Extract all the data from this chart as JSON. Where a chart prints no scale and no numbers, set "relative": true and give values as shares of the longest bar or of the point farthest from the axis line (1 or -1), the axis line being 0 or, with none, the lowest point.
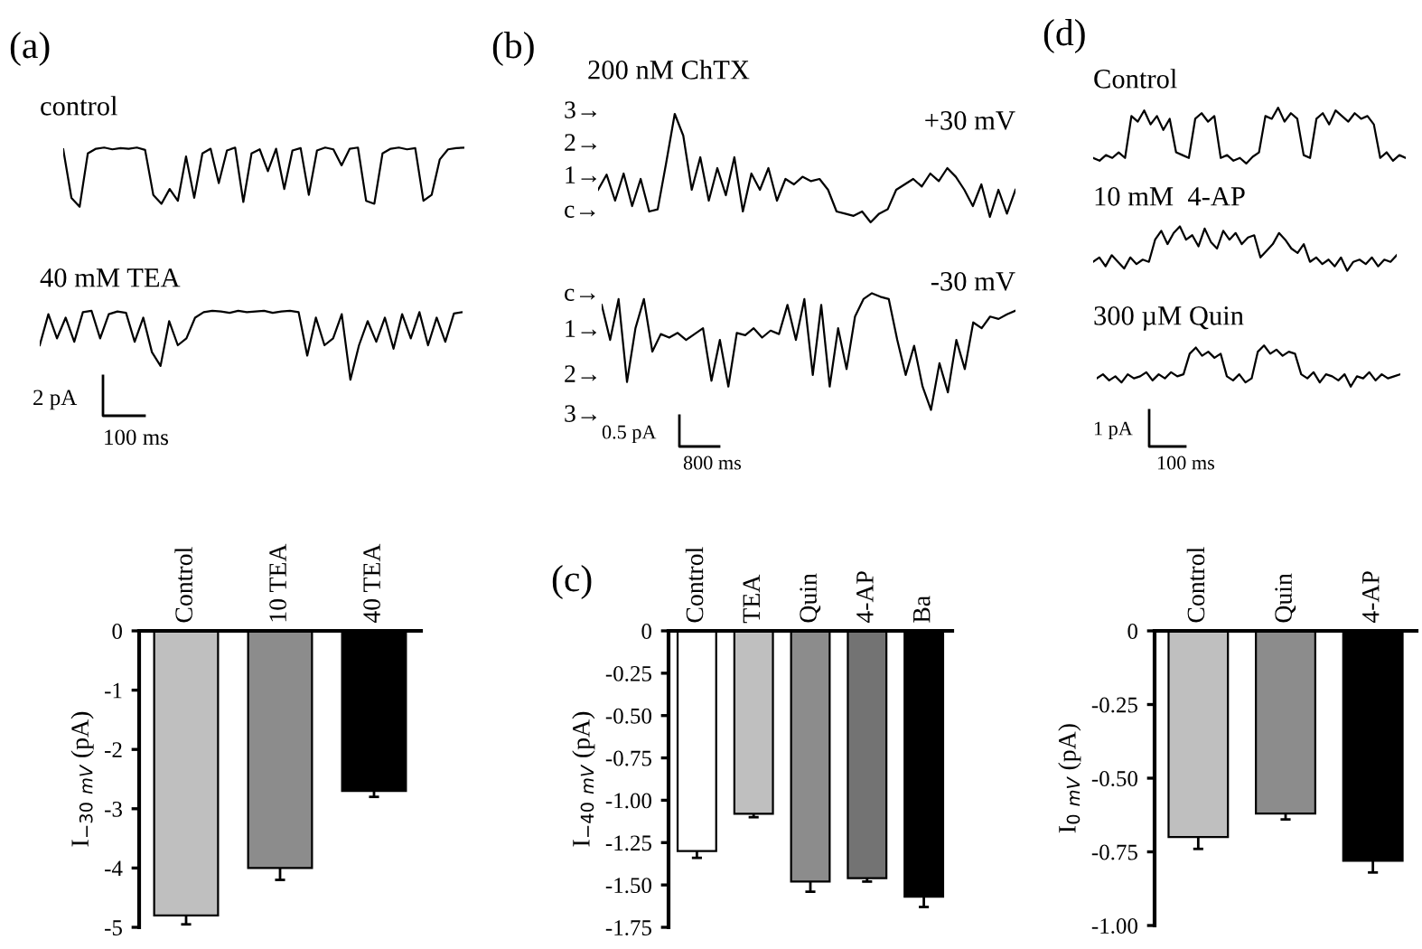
{
  "chart_data": [
    {
      "type": "line",
      "relative": true,
      "title": "control",
      "annotations": [
        "(a)"
      ],
      "categories": [
        null,
        null,
        null,
        null,
        null,
        null,
        null,
        null,
        null,
        null,
        null,
        null,
        null,
        null,
        null,
        null,
        null,
        null,
        null,
        null,
        null,
        null,
        null,
        null,
        null,
        null,
        null,
        null,
        null,
        null,
        null,
        null,
        null,
        null,
        null,
        null,
        null,
        null,
        null,
        null,
        null,
        null,
        null,
        null,
        null,
        null,
        null,
        null,
        null,
        null
      ],
      "series": [
        {
          "color": "#000000",
          "values": [
            0.97,
            0.15,
            0.0,
            0.9,
            0.98,
            1,
            0.97,
            0.99,
            0.98,
            1,
            0.96,
            0.2,
            0.05,
            0.3,
            0.1,
            0.85,
            0.15,
            0.9,
            0.98,
            0.4,
            0.95,
            1,
            0.08,
            0.9,
            0.97,
            0.6,
            0.98,
            0.3,
            0.95,
            0.99,
            0.2,
            0.95,
            1,
            0.97,
            0.7,
            0.98,
            1,
            0.1,
            0.05,
            0.9,
            0.98,
            1,
            0.97,
            0.99,
            0.1,
            0.2,
            0.8,
            0.97,
            0.99,
            1
          ]
        }
      ]
    },
    {
      "type": "line",
      "relative": true,
      "title": "40 mM TEA",
      "annotations": [
        "2 pA",
        "100 ms"
      ],
      "categories": [
        null,
        null,
        null,
        null,
        null,
        null,
        null,
        null,
        null,
        null,
        null,
        null,
        null,
        null,
        null,
        null,
        null,
        null,
        null,
        null,
        null,
        null,
        null,
        null,
        null,
        null,
        null,
        null,
        null,
        null,
        null,
        null,
        null,
        null,
        null,
        null,
        null,
        null,
        null,
        null,
        null,
        null,
        null,
        null,
        null,
        null,
        null,
        null,
        null,
        null
      ],
      "series": [
        {
          "color": "#000000",
          "values": [
            0.5,
            0.95,
            0.6,
            0.9,
            0.55,
            0.98,
            1,
            0.6,
            0.95,
            0.99,
            0.97,
            0.55,
            0.9,
            0.4,
            0.2,
            0.85,
            0.5,
            0.6,
            0.9,
            0.98,
            1,
            0.99,
            0.97,
            1,
            0.98,
            0.99,
            1,
            0.97,
            0.99,
            1,
            0.98,
            0.35,
            0.9,
            0.5,
            0.6,
            0.95,
            0.0,
            0.5,
            0.85,
            0.55,
            0.9,
            0.45,
            0.95,
            0.6,
            0.98,
            0.5,
            0.9,
            0.55,
            0.96,
            0.98
          ]
        }
      ]
    },
    {
      "type": "line",
      "relative": true,
      "title": "200 nM ChTX",
      "annotations": [
        "(b)",
        "+30 mV",
        "3→",
        "2→",
        "1→",
        "c→"
      ],
      "categories": [
        null,
        null,
        null,
        null,
        null,
        null,
        null,
        null,
        null,
        null,
        null,
        null,
        null,
        null,
        null,
        null,
        null,
        null,
        null,
        null,
        null,
        null,
        null,
        null,
        null,
        null,
        null,
        null,
        null,
        null,
        null,
        null,
        null,
        null,
        null,
        null,
        null,
        null,
        null,
        null,
        null,
        null,
        null,
        null,
        null,
        null,
        null,
        null,
        null,
        null
      ],
      "series": [
        {
          "color": "#000000",
          "values": [
            0.3,
            0.44,
            0.2,
            0.45,
            0.15,
            0.4,
            0.1,
            0.12,
            0.55,
            1,
            0.8,
            0.3,
            0.6,
            0.2,
            0.5,
            0.25,
            0.6,
            0.1,
            0.45,
            0.3,
            0.5,
            0.2,
            0.4,
            0.35,
            0.42,
            0.38,
            0.4,
            0.3,
            0.1,
            0.08,
            0.06,
            0.1,
            0.0,
            0.08,
            0.12,
            0.3,
            0.35,
            0.4,
            0.33,
            0.45,
            0.38,
            0.5,
            0.42,
            0.3,
            0.15,
            0.35,
            0.05,
            0.3,
            0.08,
            0.3
          ]
        }
      ]
    },
    {
      "type": "line",
      "relative": true,
      "annotations": [
        "-30 mV",
        "c→",
        "1→",
        "2→",
        "3→",
        "0.5 pA",
        "800 ms"
      ],
      "categories": [
        null,
        null,
        null,
        null,
        null,
        null,
        null,
        null,
        null,
        null,
        null,
        null,
        null,
        null,
        null,
        null,
        null,
        null,
        null,
        null,
        null,
        null,
        null,
        null,
        null,
        null,
        null,
        null,
        null,
        null,
        null,
        null,
        null,
        null,
        null,
        null,
        null,
        null,
        null,
        null,
        null,
        null,
        null,
        null,
        null,
        null,
        null,
        null,
        null,
        null
      ],
      "series": [
        {
          "color": "#000000",
          "values": [
            0.9,
            0.6,
            0.95,
            0.24,
            0.7,
            0.95,
            0.5,
            0.65,
            0.62,
            0.66,
            0.6,
            0.65,
            0.7,
            0.25,
            0.6,
            0.2,
            0.66,
            0.64,
            0.7,
            0.62,
            0.68,
            0.65,
            0.9,
            0.6,
            0.95,
            0.3,
            0.9,
            0.2,
            0.7,
            0.35,
            0.8,
            0.95,
            1,
            0.97,
            0.95,
            0.6,
            0.3,
            0.55,
            0.2,
            0.0,
            0.4,
            0.15,
            0.6,
            0.35,
            0.75,
            0.7,
            0.8,
            0.78,
            0.82,
            0.85
          ]
        }
      ]
    },
    {
      "type": "line",
      "relative": true,
      "title": "Control",
      "annotations": [
        "(d)"
      ],
      "categories": [
        null,
        null,
        null,
        null,
        null,
        null,
        null,
        null,
        null,
        null,
        null,
        null,
        null,
        null,
        null,
        null,
        null,
        null,
        null,
        null,
        null,
        null,
        null,
        null,
        null,
        null,
        null,
        null,
        null,
        null,
        null,
        null,
        null,
        null,
        null,
        null,
        null,
        null,
        null,
        null,
        null,
        null,
        null,
        null,
        null,
        null,
        null,
        null,
        null,
        null
      ],
      "series": [
        {
          "color": "#000000",
          "values": [
            0.1,
            0.05,
            0.15,
            0.1,
            0.2,
            0.1,
            0.85,
            0.75,
            0.95,
            0.7,
            0.85,
            0.6,
            0.8,
            0.2,
            0.15,
            0.1,
            0.8,
            0.9,
            0.75,
            0.85,
            0.1,
            0.15,
            0.05,
            0.1,
            0.0,
            0.12,
            0.2,
            0.85,
            0.8,
            1,
            0.75,
            0.9,
            0.8,
            0.15,
            0.1,
            0.8,
            0.9,
            0.7,
            0.95,
            0.85,
            0.75,
            0.9,
            0.8,
            0.85,
            0.7,
            0.1,
            0.2,
            0.05,
            0.15,
            0.1
          ]
        }
      ]
    },
    {
      "type": "line",
      "relative": true,
      "title": "10 mM  4-AP",
      "categories": [
        null,
        null,
        null,
        null,
        null,
        null,
        null,
        null,
        null,
        null,
        null,
        null,
        null,
        null,
        null,
        null,
        null,
        null,
        null,
        null,
        null,
        null,
        null,
        null,
        null,
        null,
        null,
        null,
        null,
        null,
        null,
        null,
        null,
        null,
        null,
        null,
        null,
        null,
        null,
        null,
        null,
        null,
        null,
        null,
        null,
        null,
        null,
        null,
        null,
        null
      ],
      "series": [
        {
          "color": "#000000",
          "values": [
            0.2,
            0.3,
            0.1,
            0.35,
            0.2,
            0.05,
            0.3,
            0.15,
            0.25,
            0.2,
            0.7,
            0.9,
            0.6,
            0.85,
            1,
            0.7,
            0.8,
            0.55,
            0.95,
            0.65,
            0.5,
            0.9,
            0.7,
            0.85,
            0.6,
            0.75,
            0.8,
            0.3,
            0.45,
            0.6,
            0.85,
            0.7,
            0.5,
            0.4,
            0.6,
            0.2,
            0.3,
            0.15,
            0.25,
            0.1,
            0.3,
            0.0,
            0.2,
            0.25,
            0.15,
            0.3,
            0.1,
            0.25,
            0.2,
            0.35
          ]
        }
      ]
    },
    {
      "type": "line",
      "relative": true,
      "title": "300 µM Quin",
      "annotations": [
        "1 pA",
        "100 ms"
      ],
      "categories": [
        null,
        null,
        null,
        null,
        null,
        null,
        null,
        null,
        null,
        null,
        null,
        null,
        null,
        null,
        null,
        null,
        null,
        null,
        null,
        null,
        null,
        null,
        null,
        null,
        null,
        null,
        null,
        null,
        null,
        null,
        null,
        null,
        null,
        null,
        null,
        null,
        null,
        null,
        null,
        null,
        null,
        null,
        null,
        null,
        null,
        null,
        null,
        null,
        null,
        null
      ],
      "series": [
        {
          "color": "#000000",
          "values": [
            0.2,
            0.3,
            0.15,
            0.25,
            0.1,
            0.3,
            0.2,
            0.25,
            0.35,
            0.15,
            0.3,
            0.2,
            0.35,
            0.25,
            0.3,
            0.8,
            0.95,
            0.75,
            0.85,
            0.7,
            0.8,
            0.25,
            0.15,
            0.3,
            0.1,
            0.2,
            0.85,
            1,
            0.8,
            0.9,
            0.75,
            0.85,
            0.8,
            0.3,
            0.2,
            0.35,
            0.1,
            0.3,
            0.25,
            0.15,
            0.3,
            0.0,
            0.25,
            0.2,
            0.35,
            0.15,
            0.3,
            0.2,
            0.25,
            0.3
          ]
        }
      ]
    },
    {
      "type": "bar",
      "categories": [
        "Control",
        "10 TEA",
        "40 TEA"
      ],
      "values": [
        -4.8,
        -4.0,
        -2.7
      ],
      "errors": [
        0.15,
        0.2,
        0.1
      ],
      "colors": [
        "#bfbfbf",
        "#8c8c8c",
        "#000000"
      ],
      "ylabel": "I$_{−30}$ $_{mV}$ (pA)",
      "ylim": [
        -5,
        0
      ],
      "yticks": [
        0,
        -1,
        -2,
        -3,
        -4,
        -5
      ]
    },
    {
      "type": "bar",
      "categories": [
        "Control",
        "TEA",
        "Quin",
        "4-AP",
        "Ba"
      ],
      "values": [
        -1.3,
        -1.08,
        -1.48,
        -1.46,
        -1.57
      ],
      "errors": [
        0.04,
        0.02,
        0.06,
        0.02,
        0.06
      ],
      "colors": [
        "#ffffff",
        "#bfbfbf",
        "#8c8c8c",
        "#737373",
        "#000000"
      ],
      "ylabel": "I$_{−40}$ $_{mV}$ (pA)",
      "annotations": [
        "(c)"
      ],
      "ylim": [
        -1.75,
        0
      ],
      "yticks": [
        0,
        -0.25,
        {
          "value": -0.5,
          "label": "-0.50"
        },
        -0.75,
        {
          "value": -1.0,
          "label": "-1.00"
        },
        -1.25,
        {
          "value": -1.5,
          "label": "-1.50"
        },
        -1.75
      ]
    },
    {
      "type": "bar",
      "categories": [
        "Control",
        "Quin",
        "4-AP"
      ],
      "values": [
        -0.7,
        -0.62,
        -0.78
      ],
      "errors": [
        0.04,
        0.02,
        0.04
      ],
      "colors": [
        "#bfbfbf",
        "#8c8c8c",
        "#000000"
      ],
      "ylabel": "I$_{0}$ $_{mV}$ (pA)",
      "ylim": [
        -1.0,
        0
      ],
      "yticks": [
        0,
        -0.25,
        {
          "value": -0.5,
          "label": "-0.50"
        },
        -0.75,
        {
          "value": -1.0,
          "label": "-1.00"
        }
      ]
    }
  ]
}
